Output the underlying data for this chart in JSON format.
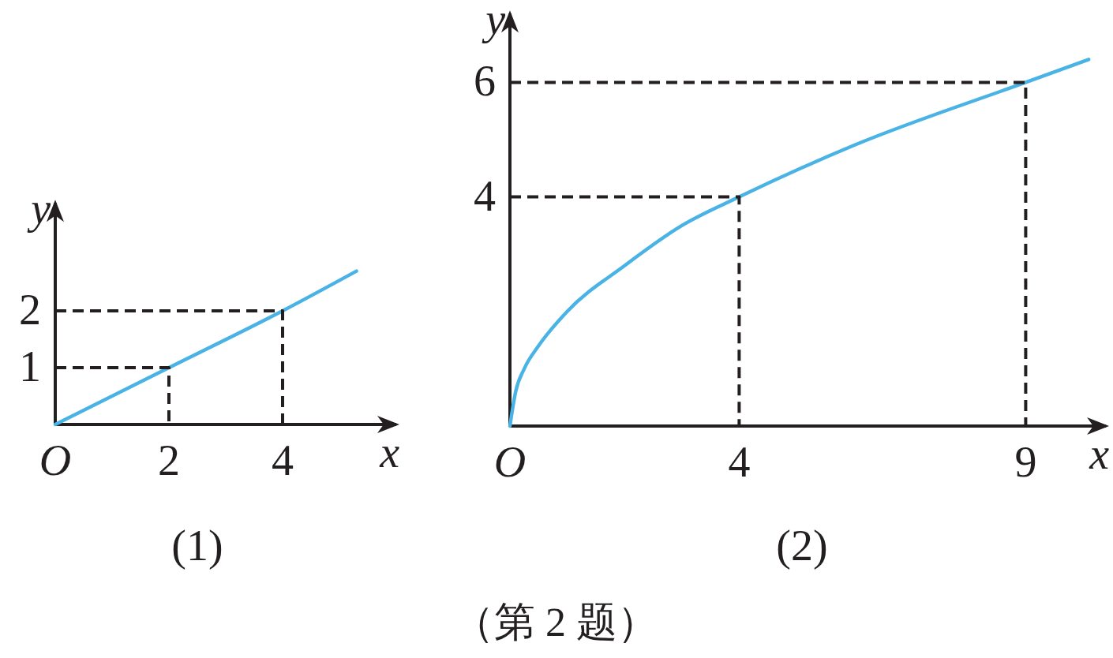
{
  "chart_data": [
    {
      "type": "line",
      "xlabel": "x",
      "ylabel": "y",
      "xlim": [
        0,
        6
      ],
      "ylim": [
        0,
        3.9
      ],
      "xticks": [
        {
          "value": 0,
          "label": "O"
        },
        2,
        4
      ],
      "yticks": [
        1,
        2
      ],
      "line_style": "solid",
      "series": [
        {
          "color": "#4ab3e5",
          "x": [
            0,
            2,
            4,
            5.3
          ],
          "values": [
            0,
            1,
            2,
            2.7
          ]
        },
        {
          "color": "#231f20",
          "line_style": "dashed",
          "x": [
            0,
            2,
            2
          ],
          "values": [
            1,
            1,
            0
          ]
        },
        {
          "color": "#231f20",
          "line_style": "dashed",
          "x": [
            0,
            4,
            4
          ],
          "values": [
            2,
            2,
            0
          ]
        }
      ],
      "annotations": [
        "(1)"
      ]
    },
    {
      "type": "line",
      "xlabel": "x",
      "ylabel": "y",
      "xlim": [
        0,
        10.4
      ],
      "ylim": [
        0,
        7.2
      ],
      "xticks": [
        {
          "value": 0,
          "label": "O"
        },
        4,
        9
      ],
      "yticks": [
        4,
        6
      ],
      "line_style": "solid",
      "series": [
        {
          "color": "#4ab3e5",
          "x": [
            0,
            0.1,
            0.25,
            0.5,
            1,
            2,
            3,
            4,
            6,
            9,
            10.1
          ],
          "values": [
            0,
            0.6,
            1,
            1.4,
            2,
            2.8,
            3.5,
            4,
            4.9,
            6,
            6.4
          ]
        },
        {
          "color": "#231f20",
          "line_style": "dashed",
          "x": [
            0,
            4,
            4
          ],
          "values": [
            4,
            4,
            0
          ]
        },
        {
          "color": "#231f20",
          "line_style": "dashed",
          "x": [
            0,
            9,
            9
          ],
          "values": [
            6,
            6,
            0
          ]
        }
      ],
      "annotations": [
        "(2)"
      ]
    },
    {
      "type": "other",
      "annotations": [
        "（第 2 题）"
      ]
    }
  ]
}
